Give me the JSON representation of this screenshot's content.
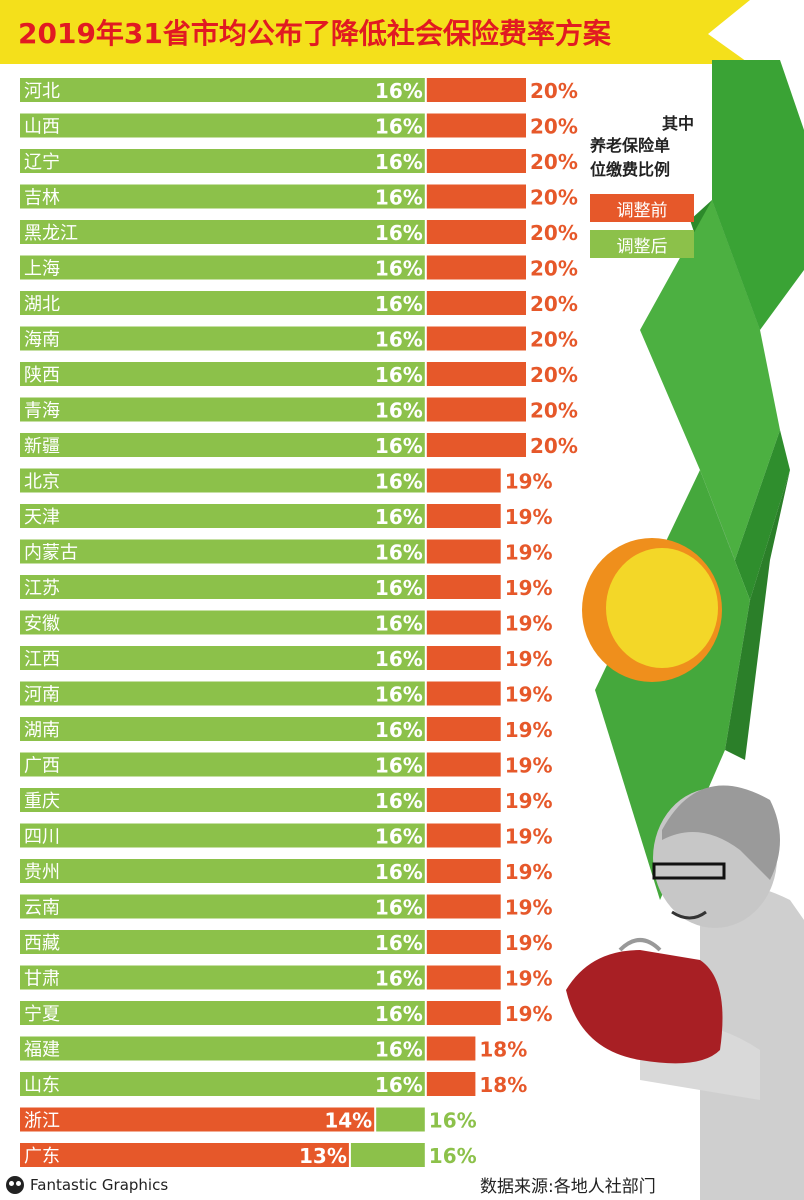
{
  "title": "2019年31省市均公布了降低社会保险费率方案",
  "legend": {
    "title_line1": "其中",
    "title_line2": "养老保险单",
    "title_line3": "位缴费比例",
    "before_label": "调整前",
    "after_label": "调整后"
  },
  "colors": {
    "before": "#e6582a",
    "after": "#8cc14a",
    "title": "#e11a22",
    "banner": "#f4e01b"
  },
  "source": "数据来源:各地人社部门",
  "brand": "Fantastic Graphics",
  "brand_icon": "panda-logo-icon",
  "chart_data": {
    "type": "bar",
    "orientation": "horizontal",
    "value_unit": "%",
    "xlim": [
      0,
      20
    ],
    "series": [
      {
        "name": "调整前",
        "color": "#e6582a"
      },
      {
        "name": "调整后",
        "color": "#8cc14a"
      }
    ],
    "rows": [
      {
        "province": "河北",
        "before": 20,
        "after": 16
      },
      {
        "province": "山西",
        "before": 20,
        "after": 16
      },
      {
        "province": "辽宁",
        "before": 20,
        "after": 16
      },
      {
        "province": "吉林",
        "before": 20,
        "after": 16
      },
      {
        "province": "黑龙江",
        "before": 20,
        "after": 16
      },
      {
        "province": "上海",
        "before": 20,
        "after": 16
      },
      {
        "province": "湖北",
        "before": 20,
        "after": 16
      },
      {
        "province": "海南",
        "before": 20,
        "after": 16
      },
      {
        "province": "陕西",
        "before": 20,
        "after": 16
      },
      {
        "province": "青海",
        "before": 20,
        "after": 16
      },
      {
        "province": "新疆",
        "before": 20,
        "after": 16
      },
      {
        "province": "北京",
        "before": 19,
        "after": 16
      },
      {
        "province": "天津",
        "before": 19,
        "after": 16
      },
      {
        "province": "内蒙古",
        "before": 19,
        "after": 16
      },
      {
        "province": "江苏",
        "before": 19,
        "after": 16
      },
      {
        "province": "安徽",
        "before": 19,
        "after": 16
      },
      {
        "province": "江西",
        "before": 19,
        "after": 16
      },
      {
        "province": "河南",
        "before": 19,
        "after": 16
      },
      {
        "province": "湖南",
        "before": 19,
        "after": 16
      },
      {
        "province": "广西",
        "before": 19,
        "after": 16
      },
      {
        "province": "重庆",
        "before": 19,
        "after": 16
      },
      {
        "province": "四川",
        "before": 19,
        "after": 16
      },
      {
        "province": "贵州",
        "before": 19,
        "after": 16
      },
      {
        "province": "云南",
        "before": 19,
        "after": 16
      },
      {
        "province": "西藏",
        "before": 19,
        "after": 16
      },
      {
        "province": "甘肃",
        "before": 19,
        "after": 16
      },
      {
        "province": "宁夏",
        "before": 19,
        "after": 16
      },
      {
        "province": "福建",
        "before": 18,
        "after": 16
      },
      {
        "province": "山东",
        "before": 18,
        "after": 16
      },
      {
        "province": "浙江",
        "before": 14,
        "after": 16
      },
      {
        "province": "广东",
        "before": 13,
        "after": 16
      }
    ]
  }
}
